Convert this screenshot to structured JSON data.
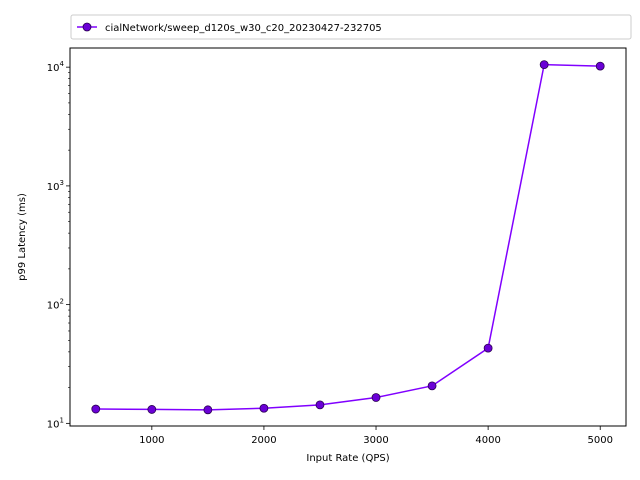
{
  "chart_data": {
    "type": "line",
    "xlabel": "Input Rate (QPS)",
    "ylabel": "p99 Latency (ms)",
    "yscale": "log",
    "xlim": [
      270,
      5230
    ],
    "ylim": [
      9.5,
      14500
    ],
    "x_ticks": [
      1000,
      2000,
      3000,
      4000,
      5000
    ],
    "x_tick_labels": [
      "1000",
      "2000",
      "3000",
      "4000",
      "5000"
    ],
    "y_ticks": [
      10,
      100,
      1000,
      10000
    ],
    "y_tick_labels": [
      {
        "base": "10",
        "exp": "1"
      },
      {
        "base": "10",
        "exp": "2"
      },
      {
        "base": "10",
        "exp": "3"
      },
      {
        "base": "10",
        "exp": "4"
      }
    ],
    "grid": false,
    "legend_position": "top (above plot)",
    "series": [
      {
        "name": "cialNetwork/sweep_d120s_w30_c20_20230427-232705",
        "color": "#8000ff",
        "marker_color": "#6a00d6",
        "x": [
          500,
          1000,
          1500,
          2000,
          2500,
          3000,
          3500,
          4000,
          4500,
          5000
        ],
        "y": [
          13.2,
          13.1,
          13.0,
          13.4,
          14.3,
          16.5,
          20.7,
          43.0,
          10500,
          10200
        ]
      }
    ]
  }
}
